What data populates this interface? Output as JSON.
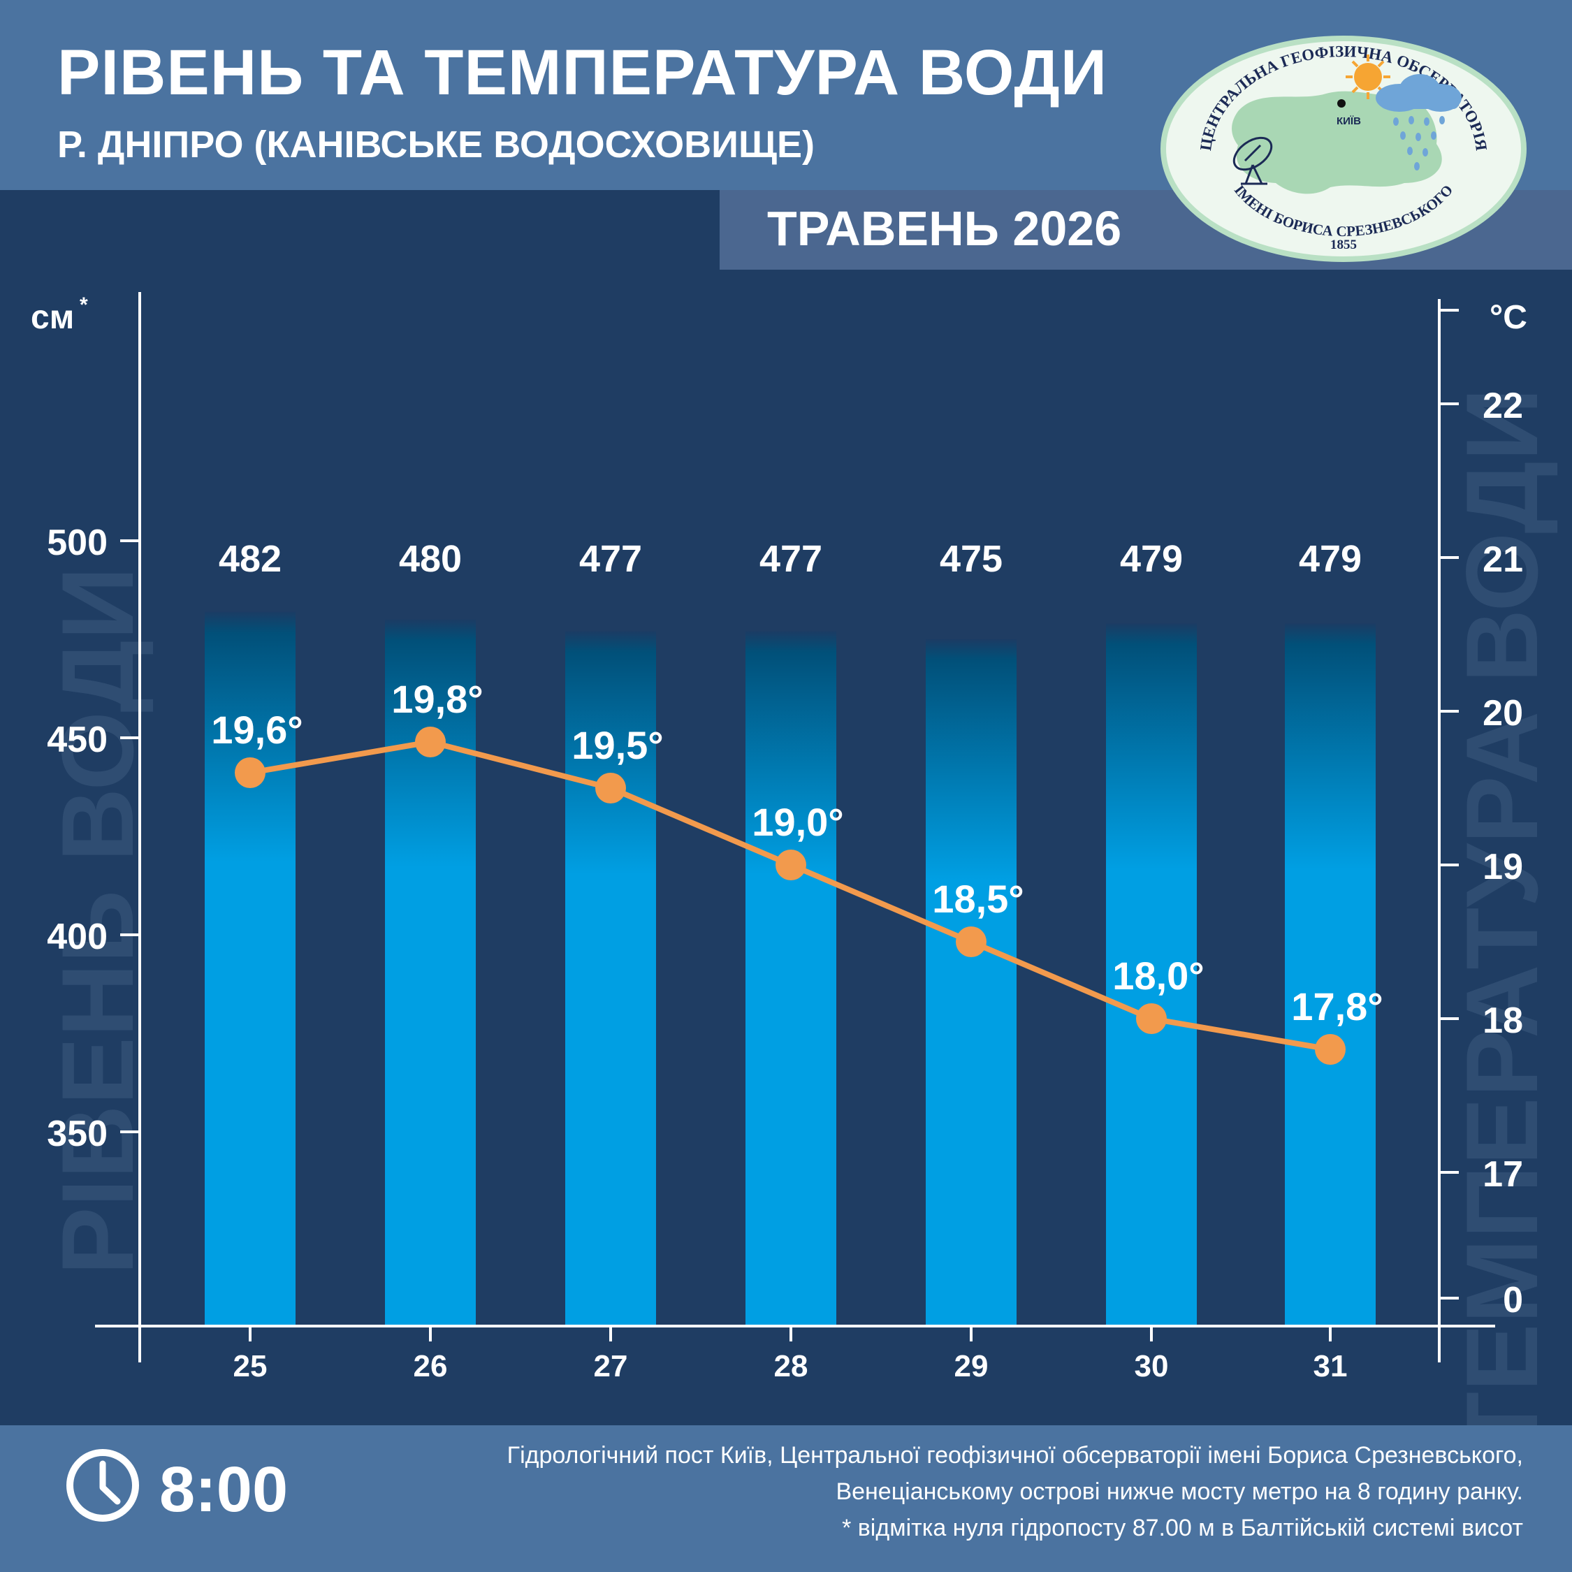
{
  "header": {
    "title": "РІВЕНЬ ТА ТЕМПЕРАТУРА ВОДИ",
    "subtitle": "Р. ДНІПРО (КАНІВСЬКЕ ВОДОСХОВИЩЕ)",
    "month": "ТРАВЕНЬ 2026"
  },
  "logo": {
    "top_text": "ЦЕНТРАЛЬНА ГЕОФІЗИЧНА ОБСЕРВАТОРІЯ",
    "bottom_text": "ІМЕНІ БОРИСА СРЕЗНЕВСЬКОГО",
    "year": "1855",
    "city": "КИЇВ",
    "colors": {
      "ellipse": "#eef7ef",
      "map": "#a9d7b4",
      "border": "#b9e0c4",
      "text": "#1b2a55",
      "sun": "#f6a533",
      "cloud": "#6fa5d8"
    }
  },
  "chart_data": {
    "type": "bar",
    "categories": [
      "25",
      "26",
      "27",
      "28",
      "29",
      "30",
      "31"
    ],
    "series": [
      {
        "type": "bar",
        "axis": "left",
        "values": [
          482,
          480,
          477,
          477,
          475,
          479,
          479
        ],
        "labels": [
          "482",
          "480",
          "477",
          "477",
          "475",
          "479",
          "479"
        ],
        "color": "#009fe3"
      },
      {
        "type": "line",
        "axis": "right",
        "values": [
          19.6,
          19.8,
          19.5,
          19.0,
          18.5,
          18.0,
          17.8
        ],
        "labels": [
          "19,6°",
          "19,8°",
          "19,5°",
          "19,0°",
          "18,5°",
          "18,0°",
          "17,8°"
        ],
        "color": "#f29a4d"
      }
    ],
    "left_axis": {
      "unit": "см",
      "unit_mark": "*",
      "label": "РІВЕНЬ ВОДИ",
      "ticks": [
        500,
        450,
        400,
        350
      ],
      "tick_labels": [
        "500",
        "450",
        "400",
        "350"
      ]
    },
    "right_axis": {
      "unit": "°С",
      "label": "ТЕМПЕРАТУРА ВОДИ",
      "ticks": [
        22,
        21,
        20,
        19,
        18,
        17,
        0
      ],
      "tick_labels": [
        "22",
        "21",
        "20",
        "19",
        "18",
        "17",
        "0"
      ],
      "scale": "broken"
    },
    "grid": false,
    "legend": "none",
    "colors": {
      "background": "#1f3d63",
      "axis": "#ffffff",
      "watermark": "#2f4d72"
    }
  },
  "footer": {
    "time": "8:00",
    "clock_icon": "clock-icon",
    "notes": [
      "Гідрологічний пост Київ, Центральної геофізичної обсерваторії імені Бориса Срезневського,",
      "Венеціанському острові нижче мосту метро  на 8 годину ранку.",
      "* відмітка нуля гідропосту 87.00 м в Балтійській системі висот"
    ]
  }
}
